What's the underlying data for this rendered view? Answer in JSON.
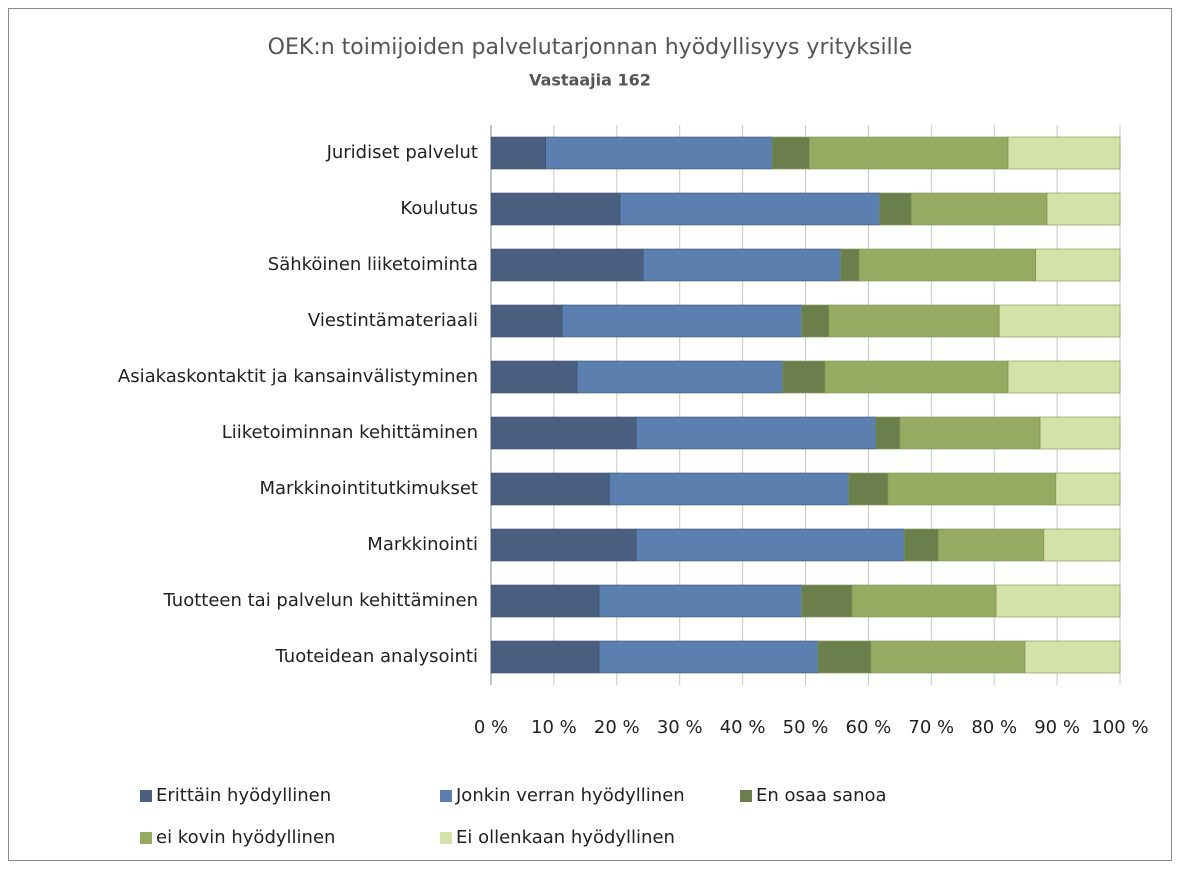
{
  "chart_data": {
    "type": "stacked_bar_horizontal",
    "title": "OEK:n toimijoiden palvelutarjonnan hyödyllisyys yrityksille",
    "subtitle": "Vastaajia 162",
    "categories": [
      "Juridiset palvelut",
      "Koulutus",
      "Sähköinen liiketoiminta",
      "Viestintämateriaali",
      "Asiakaskontaktit ja kansainvälistyminen",
      "Liiketoiminnan kehittäminen",
      "Markkinointitutkimukset",
      "Markkinointi",
      "Tuotteen tai palvelun kehittäminen",
      "Tuoteidean analysointi"
    ],
    "series": [
      {
        "name": "Erittäin hyödyllinen",
        "color": "#4a5f80",
        "values": [
          8.7,
          20.5,
          24.2,
          11.3,
          13.7,
          23.1,
          18.8,
          23.1,
          17.2,
          17.2
        ]
      },
      {
        "name": "Jonkin verran hyödyllinen",
        "color": "#5b80b0",
        "values": [
          36.0,
          41.3,
          31.4,
          38.1,
          32.7,
          38.1,
          38.1,
          42.6,
          32.2,
          34.8
        ]
      },
      {
        "name": "En osaa sanoa",
        "color": "#6b7f4c",
        "values": [
          5.9,
          5.0,
          2.9,
          4.3,
          6.7,
          3.8,
          6.2,
          5.4,
          8.0,
          8.4
        ]
      },
      {
        "name": "ei kovin hyödyllinen",
        "color": "#95ab62",
        "values": [
          31.6,
          21.6,
          28.1,
          27.1,
          29.1,
          22.3,
          26.7,
          16.8,
          22.9,
          24.5
        ]
      },
      {
        "name": "Ei ollenkaan hyödyllinen",
        "color": "#d4e1a8",
        "values": [
          17.8,
          11.6,
          13.4,
          19.2,
          17.8,
          12.7,
          10.2,
          12.1,
          19.7,
          15.1
        ]
      }
    ],
    "xlim": [
      0,
      100
    ],
    "xticks": [
      {
        "value": 0,
        "label": "0 %"
      },
      {
        "value": 10,
        "label": "10 %"
      },
      {
        "value": 20,
        "label": "20 %"
      },
      {
        "value": 30,
        "label": "30 %"
      },
      {
        "value": 40,
        "label": "40 %"
      },
      {
        "value": 50,
        "label": "50 %"
      },
      {
        "value": 60,
        "label": "60 %"
      },
      {
        "value": 70,
        "label": "70 %"
      },
      {
        "value": 80,
        "label": "80 %"
      },
      {
        "value": 90,
        "label": "90 %"
      },
      {
        "value": 100,
        "label": "100 %"
      }
    ],
    "grid": true
  }
}
